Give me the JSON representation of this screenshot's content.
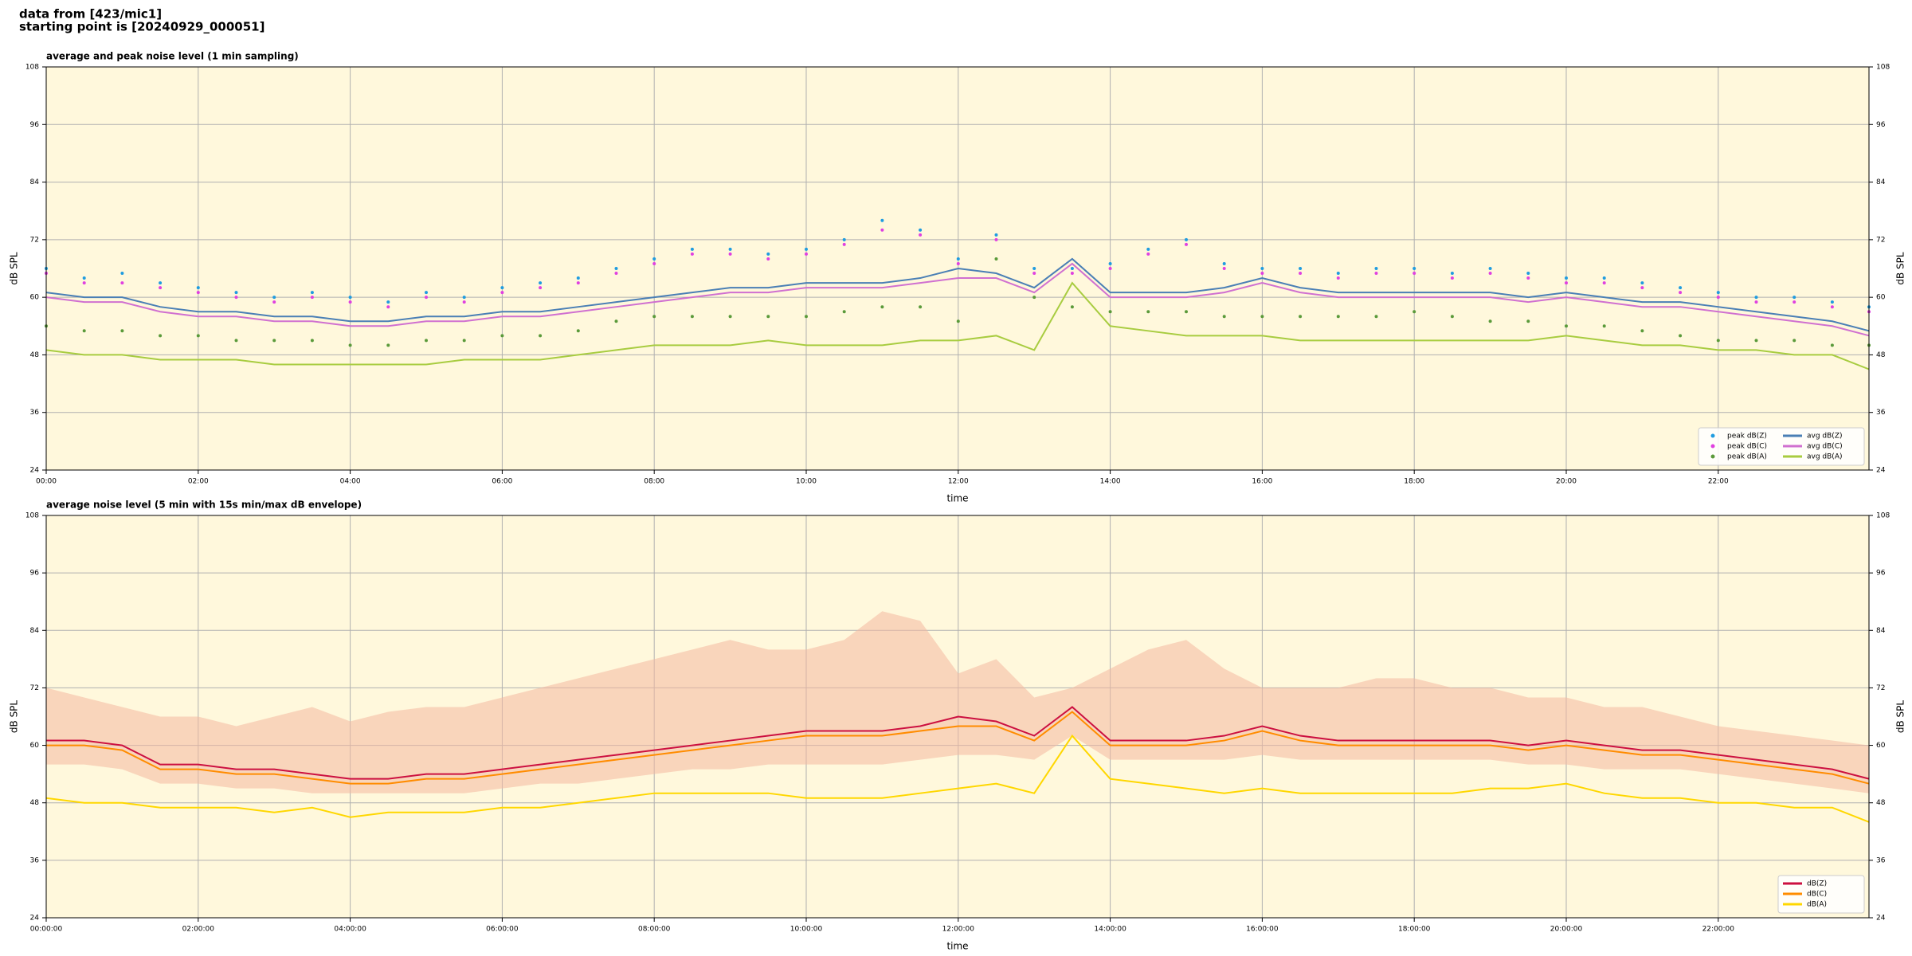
{
  "header": {
    "lines": [
      "data from [423/mic1]",
      "starting point is [20240929_000051]"
    ]
  },
  "chart_data": [
    {
      "type": "line",
      "title": "average and peak noise level (1 min sampling)",
      "x_label": "time",
      "y_label": "dB SPL",
      "x": [
        "00:00",
        "00:30",
        "01:00",
        "01:30",
        "02:00",
        "02:30",
        "03:00",
        "03:30",
        "04:00",
        "04:30",
        "05:00",
        "05:30",
        "06:00",
        "06:30",
        "07:00",
        "07:30",
        "08:00",
        "08:30",
        "09:00",
        "09:30",
        "10:00",
        "10:30",
        "11:00",
        "11:30",
        "12:00",
        "12:30",
        "13:00",
        "13:30",
        "14:00",
        "14:30",
        "15:00",
        "15:30",
        "16:00",
        "16:30",
        "17:00",
        "17:30",
        "18:00",
        "18:30",
        "19:00",
        "19:30",
        "20:00",
        "20:30",
        "21:00",
        "21:30",
        "22:00",
        "22:30",
        "23:00",
        "23:30",
        "23:59"
      ],
      "xlim": [
        "00:00",
        "23:59"
      ],
      "xticks": [
        "00:00",
        "02:00",
        "04:00",
        "06:00",
        "08:00",
        "10:00",
        "12:00",
        "14:00",
        "16:00",
        "18:00",
        "20:00",
        "22:00"
      ],
      "ylim": [
        24,
        108
      ],
      "yticks": [
        24,
        36,
        48,
        60,
        72,
        84,
        96,
        108
      ],
      "grid": true,
      "legend": "lower right",
      "background": "#fff8dc",
      "series": [
        {
          "name": "peak dB(Z)",
          "type": "scatter",
          "color": "#1f9ce0",
          "values": [
            66,
            64,
            65,
            63,
            62,
            61,
            60,
            61,
            60,
            59,
            61,
            60,
            62,
            63,
            64,
            66,
            68,
            70,
            70,
            69,
            70,
            72,
            76,
            74,
            68,
            73,
            66,
            66,
            67,
            70,
            72,
            67,
            66,
            66,
            65,
            66,
            66,
            65,
            66,
            65,
            64,
            64,
            63,
            62,
            61,
            60,
            60,
            59,
            58
          ]
        },
        {
          "name": "peak dB(C)",
          "type": "scatter",
          "color": "#e040e0",
          "values": [
            65,
            63,
            63,
            62,
            61,
            60,
            59,
            60,
            59,
            58,
            60,
            59,
            61,
            62,
            63,
            65,
            67,
            69,
            69,
            68,
            69,
            71,
            74,
            73,
            67,
            72,
            65,
            65,
            66,
            69,
            71,
            66,
            65,
            65,
            64,
            65,
            65,
            64,
            65,
            64,
            63,
            63,
            62,
            61,
            60,
            59,
            59,
            58,
            57
          ]
        },
        {
          "name": "peak dB(A)",
          "type": "scatter",
          "color": "#5a9a3a",
          "values": [
            54,
            53,
            53,
            52,
            52,
            51,
            51,
            51,
            50,
            50,
            51,
            51,
            52,
            52,
            53,
            55,
            56,
            56,
            56,
            56,
            56,
            57,
            58,
            58,
            55,
            68,
            60,
            58,
            57,
            57,
            57,
            56,
            56,
            56,
            56,
            56,
            57,
            56,
            55,
            55,
            54,
            54,
            53,
            52,
            51,
            51,
            51,
            50,
            50
          ]
        },
        {
          "name": "avg dB(Z)",
          "type": "line",
          "color": "#4a7fb5",
          "values": [
            61,
            60,
            60,
            58,
            57,
            57,
            56,
            56,
            55,
            55,
            56,
            56,
            57,
            57,
            58,
            59,
            60,
            61,
            62,
            62,
            63,
            63,
            63,
            64,
            66,
            65,
            62,
            68,
            61,
            61,
            61,
            62,
            64,
            62,
            61,
            61,
            61,
            61,
            61,
            60,
            61,
            60,
            59,
            59,
            58,
            57,
            56,
            55,
            53
          ]
        },
        {
          "name": "avg dB(C)",
          "type": "line",
          "color": "#d070d0",
          "values": [
            60,
            59,
            59,
            57,
            56,
            56,
            55,
            55,
            54,
            54,
            55,
            55,
            56,
            56,
            57,
            58,
            59,
            60,
            61,
            61,
            62,
            62,
            62,
            63,
            64,
            64,
            61,
            67,
            60,
            60,
            60,
            61,
            63,
            61,
            60,
            60,
            60,
            60,
            60,
            59,
            60,
            59,
            58,
            58,
            57,
            56,
            55,
            54,
            52
          ]
        },
        {
          "name": "avg dB(A)",
          "type": "line",
          "color": "#a8cc40",
          "values": [
            49,
            48,
            48,
            47,
            47,
            47,
            46,
            46,
            46,
            46,
            46,
            47,
            47,
            47,
            48,
            49,
            50,
            50,
            50,
            51,
            50,
            50,
            50,
            51,
            51,
            52,
            49,
            63,
            54,
            53,
            52,
            52,
            52,
            51,
            51,
            51,
            51,
            51,
            51,
            51,
            52,
            51,
            50,
            50,
            49,
            49,
            48,
            48,
            45
          ]
        }
      ]
    },
    {
      "type": "line",
      "title": "average noise level (5 min with 15s min/max dB envelope)",
      "x_label": "time",
      "y_label": "dB SPL",
      "x": [
        "00:00:00",
        "00:30:00",
        "01:00:00",
        "01:30:00",
        "02:00:00",
        "02:30:00",
        "03:00:00",
        "03:30:00",
        "04:00:00",
        "04:30:00",
        "05:00:00",
        "05:30:00",
        "06:00:00",
        "06:30:00",
        "07:00:00",
        "07:30:00",
        "08:00:00",
        "08:30:00",
        "09:00:00",
        "09:30:00",
        "10:00:00",
        "10:30:00",
        "11:00:00",
        "11:30:00",
        "12:00:00",
        "12:30:00",
        "13:00:00",
        "13:30:00",
        "14:00:00",
        "14:30:00",
        "15:00:00",
        "15:30:00",
        "16:00:00",
        "16:30:00",
        "17:00:00",
        "17:30:00",
        "18:00:00",
        "18:30:00",
        "19:00:00",
        "19:30:00",
        "20:00:00",
        "20:30:00",
        "21:00:00",
        "21:30:00",
        "22:00:00",
        "22:30:00",
        "23:00:00",
        "23:30:00",
        "23:59:00"
      ],
      "xlim": [
        "00:00:00",
        "23:59:00"
      ],
      "xticks": [
        "00:00:00",
        "02:00:00",
        "04:00:00",
        "06:00:00",
        "08:00:00",
        "10:00:00",
        "12:00:00",
        "14:00:00",
        "16:00:00",
        "18:00:00",
        "20:00:00",
        "22:00:00"
      ],
      "ylim": [
        24,
        108
      ],
      "yticks": [
        24,
        36,
        48,
        60,
        72,
        84,
        96,
        108
      ],
      "grid": true,
      "legend": "lower right",
      "background": "#fff8dc",
      "band": {
        "color": "#f4b8a0",
        "min": [
          56,
          56,
          55,
          52,
          52,
          51,
          51,
          50,
          50,
          50,
          50,
          50,
          51,
          52,
          52,
          53,
          54,
          55,
          55,
          56,
          56,
          56,
          56,
          57,
          58,
          58,
          57,
          62,
          57,
          57,
          57,
          57,
          58,
          57,
          57,
          57,
          57,
          57,
          57,
          56,
          56,
          55,
          55,
          55,
          54,
          53,
          52,
          51,
          50
        ],
        "max": [
          72,
          70,
          68,
          66,
          66,
          64,
          66,
          68,
          65,
          67,
          68,
          68,
          70,
          72,
          74,
          76,
          78,
          80,
          82,
          80,
          80,
          82,
          88,
          86,
          75,
          78,
          70,
          72,
          76,
          80,
          82,
          76,
          72,
          72,
          72,
          74,
          74,
          72,
          72,
          70,
          70,
          68,
          68,
          66,
          64,
          63,
          62,
          61,
          60
        ]
      },
      "series": [
        {
          "name": "dB(Z)",
          "type": "line",
          "color": "#cc1040",
          "values": [
            61,
            61,
            60,
            56,
            56,
            55,
            55,
            54,
            53,
            53,
            54,
            54,
            55,
            56,
            57,
            58,
            59,
            60,
            61,
            62,
            63,
            63,
            63,
            64,
            66,
            65,
            62,
            68,
            61,
            61,
            61,
            62,
            64,
            62,
            61,
            61,
            61,
            61,
            61,
            60,
            61,
            60,
            59,
            59,
            58,
            57,
            56,
            55,
            53
          ]
        },
        {
          "name": "dB(C)",
          "type": "line",
          "color": "#ff8c00",
          "values": [
            60,
            60,
            59,
            55,
            55,
            54,
            54,
            53,
            52,
            52,
            53,
            53,
            54,
            55,
            56,
            57,
            58,
            59,
            60,
            61,
            62,
            62,
            62,
            63,
            64,
            64,
            61,
            67,
            60,
            60,
            60,
            61,
            63,
            61,
            60,
            60,
            60,
            60,
            60,
            59,
            60,
            59,
            58,
            58,
            57,
            56,
            55,
            54,
            52
          ]
        },
        {
          "name": "dB(A)",
          "type": "line",
          "color": "#ffd700",
          "values": [
            49,
            48,
            48,
            47,
            47,
            47,
            46,
            47,
            45,
            46,
            46,
            46,
            47,
            47,
            48,
            49,
            50,
            50,
            50,
            50,
            49,
            49,
            49,
            50,
            51,
            52,
            50,
            62,
            53,
            52,
            51,
            50,
            51,
            50,
            50,
            50,
            50,
            50,
            51,
            51,
            52,
            50,
            49,
            49,
            48,
            48,
            47,
            47,
            44
          ]
        }
      ]
    }
  ]
}
